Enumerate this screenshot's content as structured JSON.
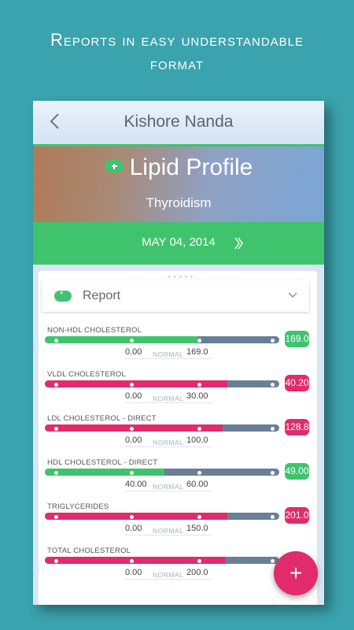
{
  "promo": {
    "line1": "Reports in easy understandable",
    "line2": "format"
  },
  "appbar": {
    "title": "Kishore Nanda",
    "back_icon": "back-chevron-icon"
  },
  "hero": {
    "title": "Lipid Profile",
    "subtitle": "Thyroidism"
  },
  "datebar": {
    "date": "MAY 04, 2014",
    "next_icon": "double-chevron-right-icon"
  },
  "report": {
    "label": "Report"
  },
  "colors": {
    "green": "#3fc36d",
    "pink": "#e02c6b",
    "track": "#6a7f97"
  },
  "tests": [
    {
      "name": "NON-HDL CHOLESTEROL",
      "value": "169.0",
      "low": "0.00",
      "normal": "NORMAL",
      "high": "169.0",
      "status": "green",
      "fill": 0.65
    },
    {
      "name": "VLDL CHOLESTEROL",
      "value": "40.20",
      "low": "0.00",
      "normal": "NORMAL",
      "high": "30.00",
      "status": "pink",
      "fill": 0.78
    },
    {
      "name": "LDL CHOLESTEROL - DIRECT",
      "value": "128.8",
      "low": "0.00",
      "normal": "NORMAL",
      "high": "100.0",
      "status": "pink",
      "fill": 0.76
    },
    {
      "name": "HDL CHOLESTEROL - DIRECT",
      "value": "49.00",
      "low": "40.00",
      "normal": "NORMAL",
      "high": "60.00",
      "status": "green",
      "fill": 0.51
    },
    {
      "name": "TRIGLYCERIDES",
      "value": "201.0",
      "low": "0.00",
      "normal": "NORMAL",
      "high": "150.0",
      "status": "pink",
      "fill": 0.78
    },
    {
      "name": "TOTAL CHOLESTEROL",
      "value": "",
      "low": "0.00",
      "normal": "NORMAL",
      "high": "200.0",
      "status": "pink",
      "fill": 0.77
    }
  ],
  "fab": {
    "label": "+",
    "icon": "add-icon"
  }
}
